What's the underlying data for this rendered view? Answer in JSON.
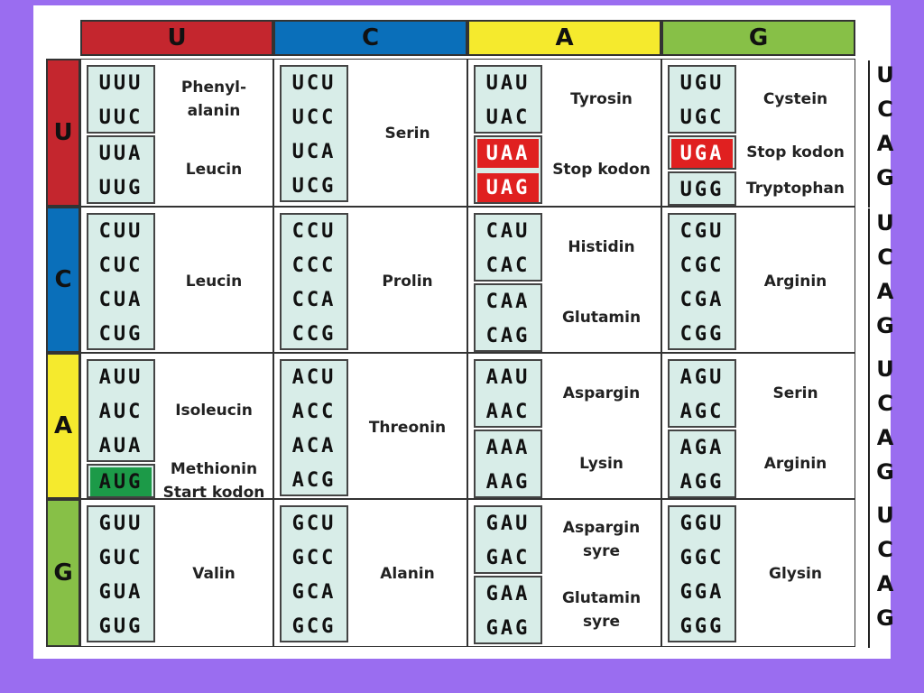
{
  "colors": {
    "U": "#c4262e",
    "C": "#0a6fba",
    "A": "#f5ea2d",
    "G": "#87c047",
    "stop": "#e02020",
    "start": "#1c9a48",
    "codon_bg": "#d8ede8",
    "page_bg": "#9A6DF0"
  },
  "second_letters": [
    {
      "letter": "U",
      "color": "#c4262e"
    },
    {
      "letter": "C",
      "color": "#0a6fba"
    },
    {
      "letter": "A",
      "color": "#f5ea2d"
    },
    {
      "letter": "G",
      "color": "#87c047"
    }
  ],
  "first_letters": [
    {
      "letter": "U",
      "color": "#c4262e"
    },
    {
      "letter": "C",
      "color": "#0a6fba"
    },
    {
      "letter": "A",
      "color": "#f5ea2d"
    },
    {
      "letter": "G",
      "color": "#87c047"
    }
  ],
  "third_letters": [
    "U",
    "C",
    "A",
    "G"
  ],
  "rows": [
    {
      "cells": [
        {
          "groups": [
            {
              "codons": [
                "UUU",
                "UUC"
              ],
              "label": [
                "Phenyl-",
                "alanin"
              ]
            },
            {
              "codons": [
                "UUA",
                "UUG"
              ],
              "label": [
                "Leucin"
              ]
            }
          ]
        },
        {
          "groups": [
            {
              "codons": [
                "UCU",
                "UCC",
                "UCA",
                "UCG"
              ],
              "label": [
                "Serin"
              ]
            }
          ]
        },
        {
          "groups": [
            {
              "codons": [
                "UAU",
                "UAC"
              ],
              "label": [
                "Tyrosin"
              ]
            },
            {
              "codons": [
                "UAA",
                "UAG"
              ],
              "label": [
                "Stop kodon"
              ],
              "style": "stop"
            }
          ]
        },
        {
          "groups": [
            {
              "codons": [
                "UGU",
                "UGC"
              ],
              "label": [
                "Cystein"
              ]
            },
            {
              "codons": [
                "UGA"
              ],
              "label": [
                "Stop kodon"
              ],
              "style": "stop"
            },
            {
              "codons": [
                "UGG"
              ],
              "label": [
                "Tryptophan"
              ]
            }
          ]
        }
      ]
    },
    {
      "cells": [
        {
          "groups": [
            {
              "codons": [
                "CUU",
                "CUC",
                "CUA",
                "CUG"
              ],
              "label": [
                "Leucin"
              ]
            }
          ]
        },
        {
          "groups": [
            {
              "codons": [
                "CCU",
                "CCC",
                "CCA",
                "CCG"
              ],
              "label": [
                "Prolin"
              ]
            }
          ]
        },
        {
          "groups": [
            {
              "codons": [
                "CAU",
                "CAC"
              ],
              "label": [
                "Histidin"
              ]
            },
            {
              "codons": [
                "CAA",
                "CAG"
              ],
              "label": [
                "Glutamin"
              ]
            }
          ]
        },
        {
          "groups": [
            {
              "codons": [
                "CGU",
                "CGC",
                "CGA",
                "CGG"
              ],
              "label": [
                "Arginin"
              ]
            }
          ]
        }
      ]
    },
    {
      "cells": [
        {
          "groups": [
            {
              "codons": [
                "AUU",
                "AUC",
                "AUA"
              ],
              "label": [
                "Isoleucin"
              ]
            },
            {
              "codons": [
                "AUG"
              ],
              "label": [
                "Methionin",
                "Start kodon"
              ],
              "style": "start"
            }
          ]
        },
        {
          "groups": [
            {
              "codons": [
                "ACU",
                "ACC",
                "ACA",
                "ACG"
              ],
              "label": [
                "Threonin"
              ]
            }
          ]
        },
        {
          "groups": [
            {
              "codons": [
                "AAU",
                "AAC"
              ],
              "label": [
                "Aspargin"
              ]
            },
            {
              "codons": [
                "AAA",
                "AAG"
              ],
              "label": [
                "Lysin"
              ]
            }
          ]
        },
        {
          "groups": [
            {
              "codons": [
                "AGU",
                "AGC"
              ],
              "label": [
                "Serin"
              ]
            },
            {
              "codons": [
                "AGA",
                "AGG"
              ],
              "label": [
                "Arginin"
              ]
            }
          ]
        }
      ]
    },
    {
      "cells": [
        {
          "groups": [
            {
              "codons": [
                "GUU",
                "GUC",
                "GUA",
                "GUG"
              ],
              "label": [
                "Valin"
              ]
            }
          ]
        },
        {
          "groups": [
            {
              "codons": [
                "GCU",
                "GCC",
                "GCA",
                "GCG"
              ],
              "label": [
                "Alanin"
              ]
            }
          ]
        },
        {
          "groups": [
            {
              "codons": [
                "GAU",
                "GAC"
              ],
              "label": [
                "Aspargin",
                "syre"
              ]
            },
            {
              "codons": [
                "GAA",
                "GAG"
              ],
              "label": [
                "Glutamin",
                "syre"
              ]
            }
          ]
        },
        {
          "groups": [
            {
              "codons": [
                "GGU",
                "GGC",
                "GGA",
                "GGG"
              ],
              "label": [
                "Glysin"
              ]
            }
          ]
        }
      ]
    }
  ]
}
